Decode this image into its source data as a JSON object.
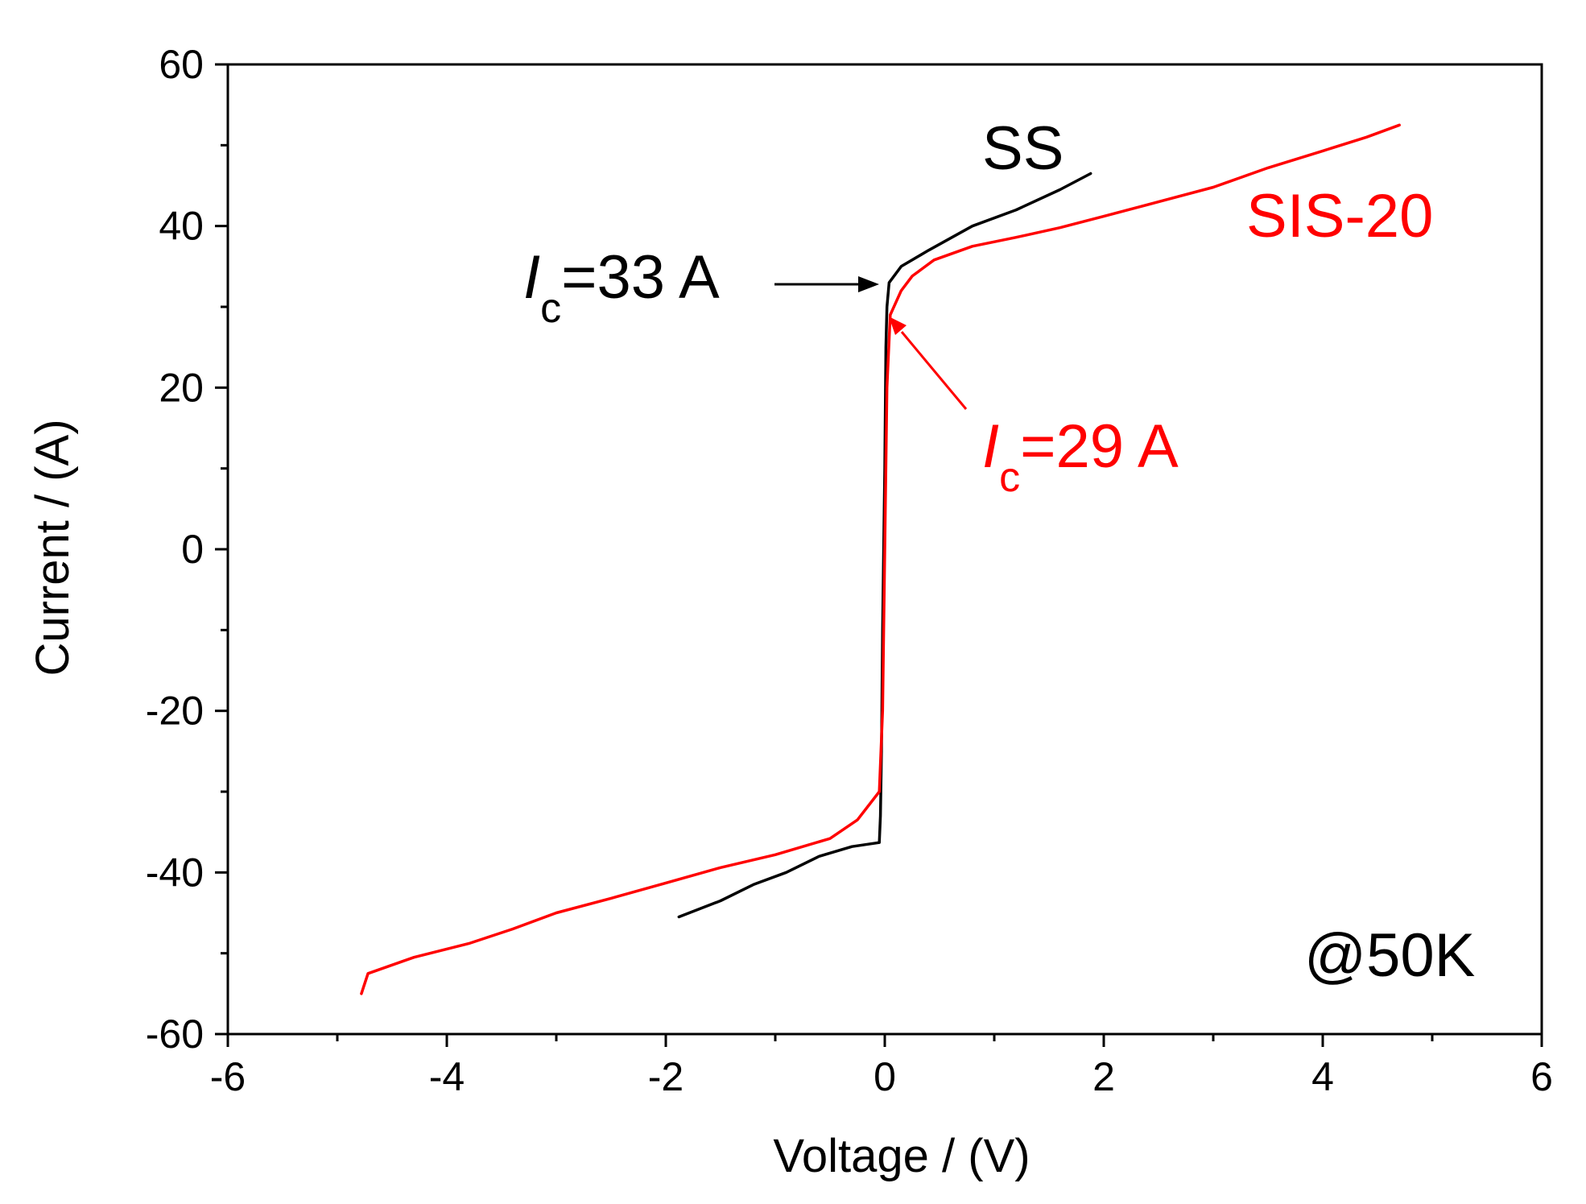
{
  "chart_data": {
    "type": "line",
    "xlabel": "Voltage / (V)",
    "ylabel": "Current / (A)",
    "xlim": [
      -6,
      6
    ],
    "ylim": [
      -60,
      60
    ],
    "x_ticks": [
      "-6",
      "-4",
      "-2",
      "0",
      "2",
      "4",
      "6"
    ],
    "y_ticks": [
      "60",
      "40",
      "20",
      "0",
      "-20",
      "-40",
      "-60"
    ],
    "grid": false,
    "series": [
      {
        "name": "SS",
        "color": "#000000",
        "x": [
          -1.88,
          -1.5,
          -1.2,
          -0.9,
          -0.6,
          -0.3,
          -0.05,
          -0.04,
          -0.03,
          -0.02,
          -0.01,
          0.0,
          0.01,
          0.02,
          0.04,
          0.15,
          0.4,
          0.8,
          1.2,
          1.6,
          1.88
        ],
        "y": [
          -45.5,
          -43.5,
          -41.5,
          -40.0,
          -38.0,
          -36.8,
          -36.3,
          -33.0,
          -25.0,
          -10.0,
          0.0,
          10.0,
          25.0,
          30.0,
          33.0,
          35.0,
          37.0,
          40.0,
          42.0,
          44.5,
          46.5
        ]
      },
      {
        "name": "SIS-20",
        "color": "#ff0000",
        "x": [
          -4.78,
          -4.72,
          -4.3,
          -3.8,
          -3.4,
          -3.0,
          -2.5,
          -2.0,
          -1.5,
          -1.0,
          -0.5,
          -0.25,
          -0.05,
          -0.02,
          0.0,
          0.02,
          0.05,
          0.15,
          0.25,
          0.45,
          0.8,
          1.2,
          1.6,
          2.0,
          2.5,
          3.0,
          3.5,
          4.0,
          4.4,
          4.7
        ],
        "y": [
          -55.0,
          -52.5,
          -50.5,
          -48.8,
          -47.0,
          -45.0,
          -43.2,
          -41.3,
          -39.4,
          -37.8,
          -35.8,
          -33.5,
          -30.0,
          -20.0,
          0.0,
          20.0,
          29.0,
          32.0,
          33.8,
          35.8,
          37.5,
          38.6,
          39.8,
          41.2,
          43.0,
          44.8,
          47.2,
          49.3,
          51.0,
          52.5
        ]
      }
    ],
    "annotations": {
      "ss_label": "SS",
      "sis_label": "SIS-20",
      "ic_ss_italic": "I",
      "ic_ss_sub": "c",
      "ic_ss_value": "=33 A",
      "ic_sis_italic": "I",
      "ic_sis_sub": "c",
      "ic_sis_value": "=29 A",
      "temperature": "@50K"
    }
  }
}
